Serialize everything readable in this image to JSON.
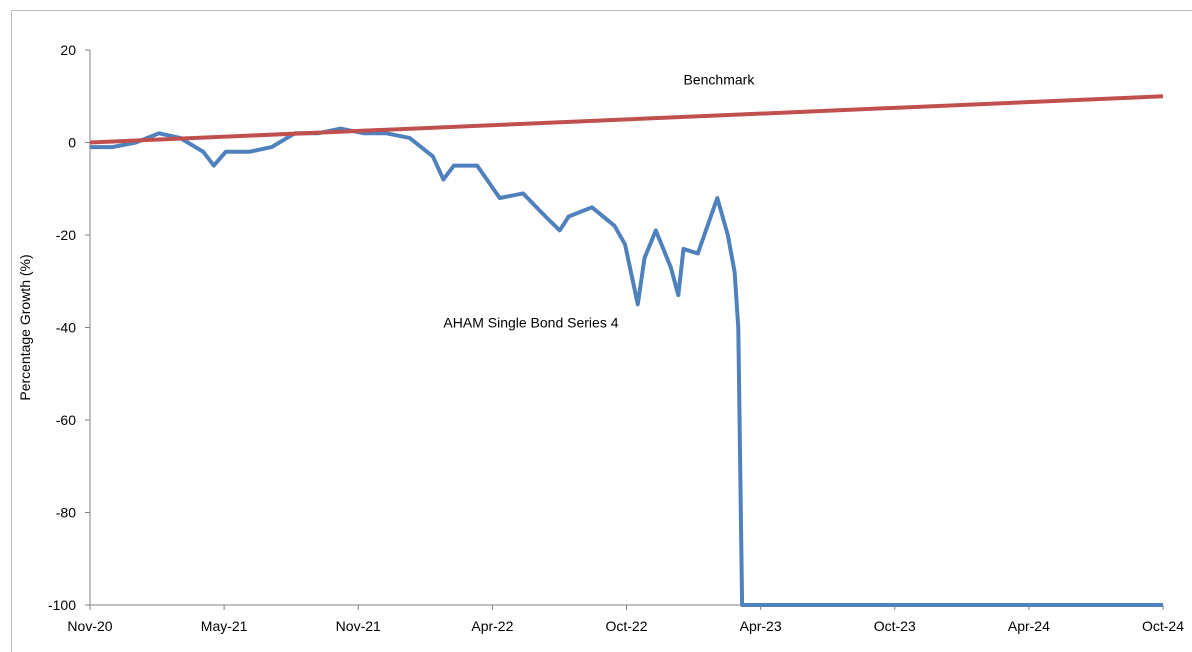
{
  "chart_data": {
    "type": "line",
    "title": "",
    "xlabel": "",
    "ylabel": "Percentage Growth (%)",
    "ylim": [
      -100,
      20
    ],
    "yticks": [
      20,
      0,
      -20,
      -40,
      -60,
      -80,
      -100
    ],
    "xlim": [
      "2020-11",
      "2024-10"
    ],
    "xticks": [
      "Nov-20",
      "May-21",
      "Nov-21",
      "Apr-22",
      "Oct-22",
      "Apr-23",
      "Oct-23",
      "Apr-24",
      "Oct-24"
    ],
    "grid": false,
    "legend": "none",
    "series": [
      {
        "name": "AHAM Single Bond Series 4",
        "color": "#4f81bd",
        "points": [
          [
            "2020-11-01",
            -1
          ],
          [
            "2020-12-01",
            -1
          ],
          [
            "2021-01-01",
            0
          ],
          [
            "2021-02-01",
            2
          ],
          [
            "2021-03-01",
            1
          ],
          [
            "2021-04-01",
            -2
          ],
          [
            "2021-04-15",
            -5
          ],
          [
            "2021-05-01",
            -2
          ],
          [
            "2021-06-01",
            -2
          ],
          [
            "2021-07-01",
            -1
          ],
          [
            "2021-08-01",
            2
          ],
          [
            "2021-09-01",
            2
          ],
          [
            "2021-10-01",
            3
          ],
          [
            "2021-11-01",
            2
          ],
          [
            "2021-12-01",
            2
          ],
          [
            "2022-01-01",
            1
          ],
          [
            "2022-02-01",
            -3
          ],
          [
            "2022-02-15",
            -8
          ],
          [
            "2022-03-01",
            -5
          ],
          [
            "2022-04-01",
            -5
          ],
          [
            "2022-05-01",
            -12
          ],
          [
            "2022-06-01",
            -11
          ],
          [
            "2022-07-01",
            -16
          ],
          [
            "2022-07-20",
            -19
          ],
          [
            "2022-08-01",
            -16
          ],
          [
            "2022-09-01",
            -14
          ],
          [
            "2022-10-01",
            -18
          ],
          [
            "2022-10-15",
            -22
          ],
          [
            "2022-11-01",
            -35
          ],
          [
            "2022-11-10",
            -25
          ],
          [
            "2022-11-25",
            -19
          ],
          [
            "2022-12-15",
            -27
          ],
          [
            "2022-12-25",
            -33
          ],
          [
            "2023-01-01",
            -23
          ],
          [
            "2023-01-20",
            -24
          ],
          [
            "2023-02-15",
            -12
          ],
          [
            "2023-03-01",
            -20
          ],
          [
            "2023-03-10",
            -28
          ],
          [
            "2023-03-15",
            -40
          ],
          [
            "2023-03-20",
            -100
          ],
          [
            "2024-10-01",
            -100
          ]
        ]
      },
      {
        "name": "Benchmark",
        "color": "#c0504d",
        "points": [
          [
            "2020-11-01",
            0
          ],
          [
            "2024-10-01",
            10
          ]
        ]
      }
    ],
    "annotations": [
      {
        "text": "Benchmark",
        "x": "2023-01-01",
        "y": 12.5
      },
      {
        "text": "AHAM Single Bond Series 4",
        "x": "2022-02-15",
        "y": -40
      }
    ]
  }
}
